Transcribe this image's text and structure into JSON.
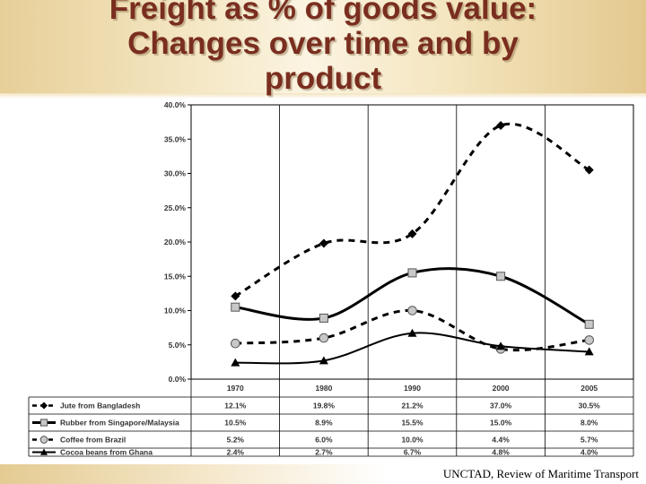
{
  "title_lines": [
    "Freight as % of goods value:",
    "Changes over time and by",
    "product"
  ],
  "source": "UNCTAD, Review of Maritime Transport",
  "chart_data": {
    "type": "line",
    "x": [
      "1970",
      "1980",
      "1990",
      "2000",
      "2005"
    ],
    "ylim": [
      0,
      40
    ],
    "y_ticks": [
      "0.0%",
      "5.0%",
      "10.0%",
      "15.0%",
      "20.0%",
      "25.0%",
      "30.0%",
      "35.0%",
      "40.0%"
    ],
    "grid": "vertical",
    "legend": "data-table-below",
    "series": [
      {
        "name": "Jute from Bangladesh",
        "values": [
          12.1,
          19.8,
          21.2,
          37.0,
          30.5
        ],
        "labels": [
          "12.1%",
          "19.8%",
          "21.2%",
          "37.0%",
          "30.5%"
        ],
        "marker": "diamond",
        "line": "dashed",
        "color": "#000000"
      },
      {
        "name": "Rubber from Singapore/Malaysia",
        "values": [
          10.5,
          8.9,
          15.5,
          15.0,
          8.0
        ],
        "labels": [
          "10.5%",
          "8.9%",
          "15.5%",
          "15.0%",
          "8.0%"
        ],
        "marker": "square",
        "line": "solid-thick",
        "color": "#000000",
        "marker_fill": "#c8c8c8"
      },
      {
        "name": "Coffee from Brazil",
        "values": [
          5.2,
          6.0,
          10.0,
          4.4,
          5.7
        ],
        "labels": [
          "5.2%",
          "6.0%",
          "10.0%",
          "4.4%",
          "5.7%"
        ],
        "marker": "circle",
        "line": "dashed",
        "color": "#000000",
        "marker_fill": "#c8c8c8"
      },
      {
        "name": "Cocoa beans from Ghana",
        "values": [
          2.4,
          2.7,
          6.7,
          4.8,
          4.0
        ],
        "labels": [
          "2.4%",
          "2.7%",
          "6.7%",
          "4.8%",
          "4.0%"
        ],
        "marker": "triangle",
        "line": "solid",
        "color": "#000000"
      }
    ]
  }
}
